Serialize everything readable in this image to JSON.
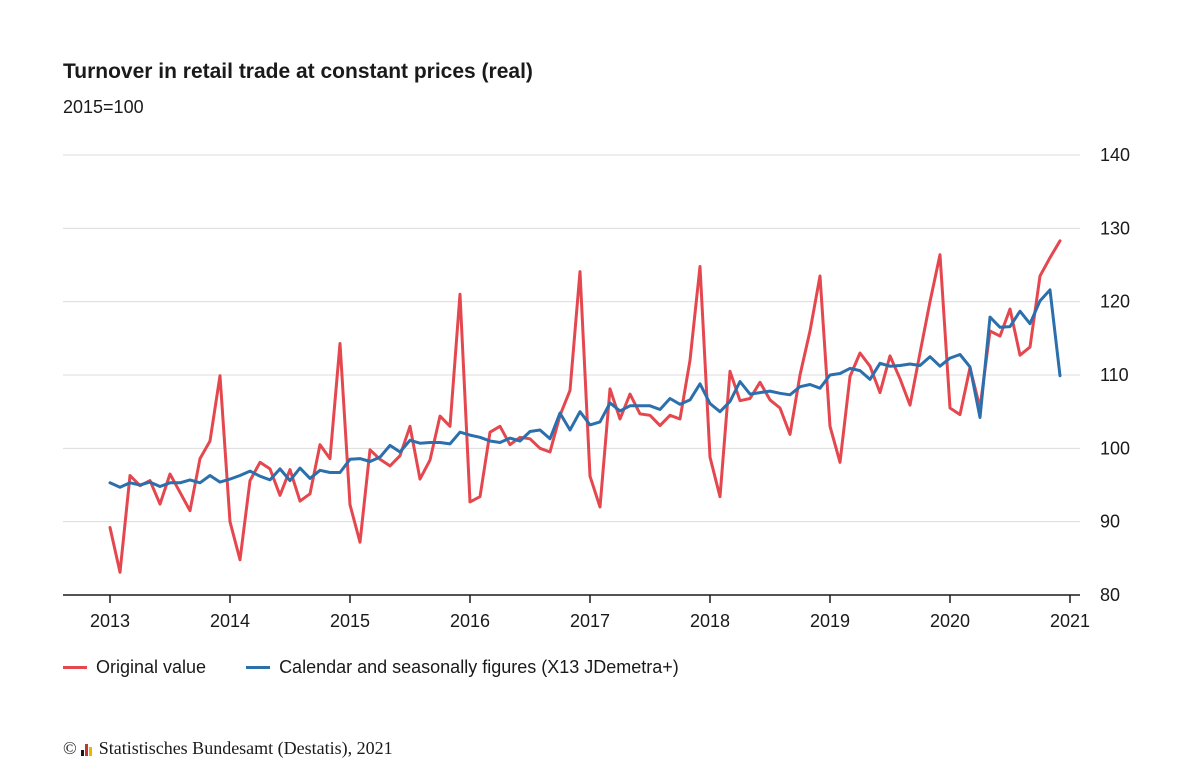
{
  "chart_data": {
    "type": "line",
    "title": "Turnover in retail trade at constant prices (real)",
    "subtitle": "2015=100",
    "xlabel": "",
    "ylabel": "",
    "x_ticks": [
      "2013",
      "2014",
      "2015",
      "2016",
      "2017",
      "2018",
      "2019",
      "2020",
      "2021"
    ],
    "y_ticks": [
      80,
      90,
      100,
      110,
      120,
      130,
      140
    ],
    "ylim": [
      80,
      140
    ],
    "xlim": [
      "2013-01",
      "2021-01"
    ],
    "grid": true,
    "legend_position": "bottom",
    "start_month": "2013-01",
    "series": [
      {
        "name": "Original value",
        "color": "#e5474f",
        "values": [
          89.2,
          83.1,
          96.3,
          94.9,
          95.6,
          92.4,
          96.5,
          94.0,
          91.5,
          98.6,
          101.0,
          109.9,
          90.0,
          84.8,
          95.6,
          98.1,
          97.2,
          93.6,
          97.1,
          92.8,
          93.8,
          100.5,
          98.6,
          114.3,
          92.3,
          87.2,
          99.8,
          98.5,
          97.6,
          99.0,
          103.0,
          95.8,
          98.4,
          104.4,
          103.0,
          121.0,
          92.7,
          93.4,
          102.2,
          103.0,
          100.5,
          101.5,
          101.3,
          100.0,
          99.5,
          104.5,
          107.9,
          124.1,
          96.2,
          92.0,
          108.1,
          104.0,
          107.4,
          104.7,
          104.5,
          103.1,
          104.5,
          104.0,
          112.0,
          124.8,
          98.8,
          93.4,
          110.5,
          106.5,
          106.8,
          109.0,
          106.6,
          105.5,
          101.9,
          110.0,
          116.0,
          123.5,
          103.0,
          98.1,
          109.8,
          113.0,
          111.2,
          107.6,
          112.6,
          109.5,
          105.9,
          113.0,
          120.0,
          126.4,
          105.5,
          104.6,
          111.0,
          105.5,
          116.0,
          115.3,
          119.0,
          112.7,
          113.8,
          123.5,
          126.0,
          128.3
        ]
      },
      {
        "name": "Calendar and seasonally figures (X13 JDemetra+)",
        "color": "#2b6fad",
        "values": [
          95.3,
          94.7,
          95.3,
          95.0,
          95.4,
          94.8,
          95.3,
          95.3,
          95.7,
          95.3,
          96.3,
          95.4,
          95.8,
          96.3,
          96.9,
          96.2,
          95.7,
          97.2,
          95.6,
          97.3,
          95.9,
          97.0,
          96.7,
          96.7,
          98.5,
          98.6,
          98.2,
          98.8,
          100.4,
          99.5,
          101.1,
          100.7,
          100.8,
          100.8,
          100.6,
          102.2,
          101.8,
          101.5,
          101.0,
          100.8,
          101.4,
          101.0,
          102.3,
          102.5,
          101.3,
          104.8,
          102.5,
          105.0,
          103.2,
          103.6,
          106.2,
          105.1,
          105.8,
          105.8,
          105.8,
          105.3,
          106.8,
          106.0,
          106.6,
          108.8,
          106.1,
          105.0,
          106.4,
          109.1,
          107.4,
          107.6,
          107.8,
          107.5,
          107.3,
          108.4,
          108.7,
          108.2,
          110.0,
          110.2,
          110.9,
          110.6,
          109.4,
          111.6,
          111.2,
          111.3,
          111.5,
          111.3,
          112.5,
          111.2,
          112.3,
          112.8,
          111.1,
          104.2,
          117.9,
          116.5,
          116.6,
          118.7,
          117.0,
          120.1,
          121.6,
          109.9
        ]
      }
    ]
  },
  "footer": {
    "copyright_symbol": "©",
    "text": "Statistisches Bundesamt (Destatis), 2021"
  }
}
